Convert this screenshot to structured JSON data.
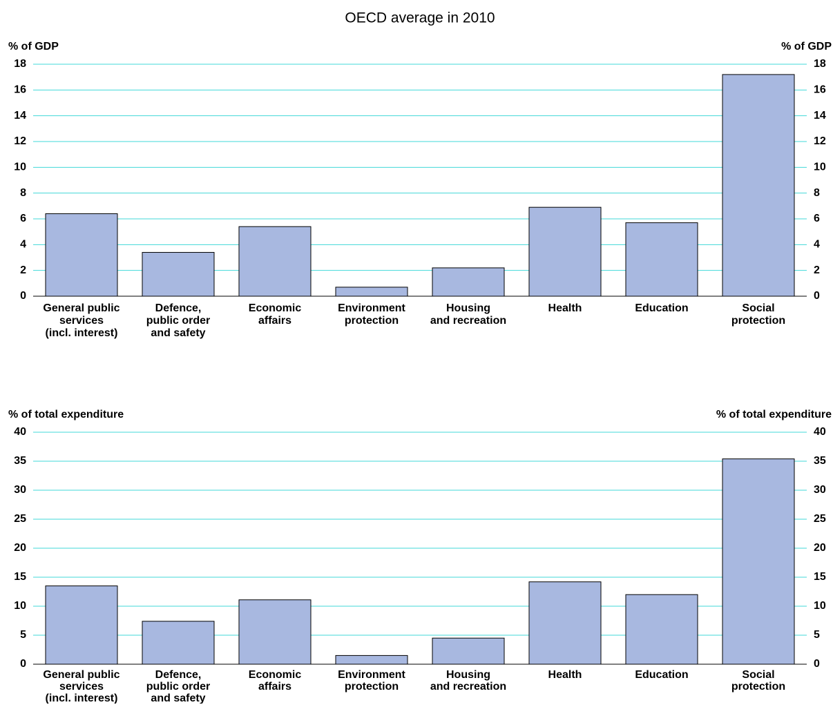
{
  "title": "OECD average in 2010",
  "chart_data": [
    {
      "type": "bar",
      "ylabel": "% of GDP",
      "categories": [
        [
          "General public",
          "services",
          "(incl. interest)"
        ],
        [
          "Defence,",
          "public order",
          "and safety"
        ],
        [
          "Economic",
          "affairs"
        ],
        [
          "Environment",
          "protection"
        ],
        [
          "Housing",
          "and recreation"
        ],
        [
          "Health"
        ],
        [
          "Education"
        ],
        [
          "Social",
          "protection"
        ]
      ],
      "values": [
        6.4,
        3.4,
        5.4,
        0.7,
        2.2,
        6.9,
        5.7,
        17.2
      ],
      "color": "#a8b8e0",
      "ylim": [
        0,
        18
      ],
      "yticks": [
        0,
        2,
        4,
        6,
        8,
        10,
        12,
        14,
        16,
        18
      ],
      "grid": true
    },
    {
      "type": "bar",
      "ylabel": "% of total expenditure",
      "categories": [
        [
          "General public",
          "services",
          "(incl. interest)"
        ],
        [
          "Defence,",
          "public order",
          "and safety"
        ],
        [
          "Economic",
          "affairs"
        ],
        [
          "Environment",
          "protection"
        ],
        [
          "Housing",
          "and recreation"
        ],
        [
          "Health"
        ],
        [
          "Education"
        ],
        [
          "Social",
          "protection"
        ]
      ],
      "values": [
        13.5,
        7.4,
        11.1,
        1.5,
        4.5,
        14.2,
        12.0,
        35.4
      ],
      "color": "#a8b8e0",
      "ylim": [
        0,
        40
      ],
      "yticks": [
        0,
        5,
        10,
        15,
        20,
        25,
        30,
        35,
        40
      ],
      "grid": true
    }
  ]
}
